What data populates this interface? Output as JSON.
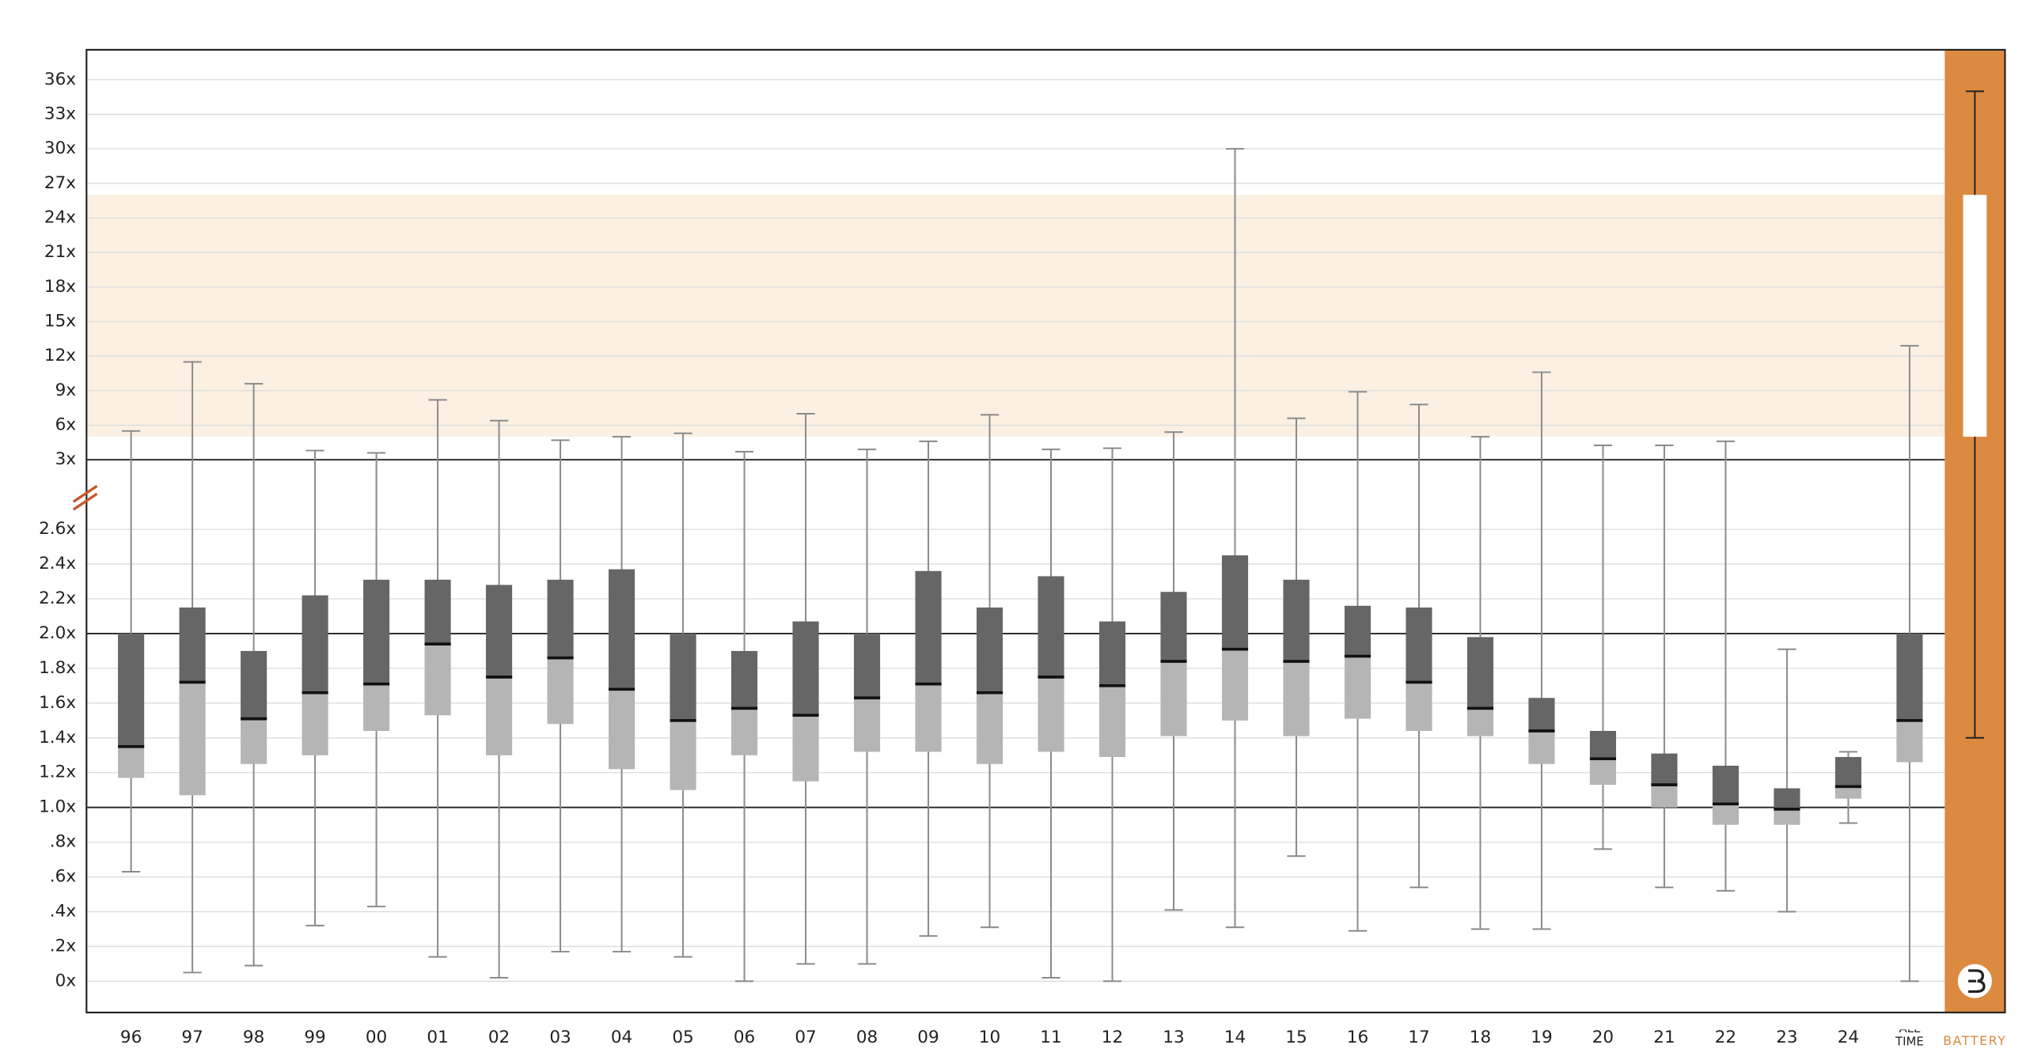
{
  "chart_data": {
    "type": "box",
    "categories": [
      "96",
      "97",
      "98",
      "99",
      "00",
      "01",
      "02",
      "03",
      "04",
      "05",
      "06",
      "07",
      "08",
      "09",
      "10",
      "11",
      "12",
      "13",
      "14",
      "15",
      "16",
      "17",
      "18",
      "19",
      "20",
      "21",
      "22",
      "23",
      "24",
      "ALL TIME"
    ],
    "boxes": [
      {
        "low": 0.63,
        "q1": 1.17,
        "median": 1.35,
        "q3": 2.0,
        "high": 5.5
      },
      {
        "low": 0.05,
        "q1": 1.07,
        "median": 1.72,
        "q3": 2.15,
        "high": 11.5
      },
      {
        "low": 0.09,
        "q1": 1.25,
        "median": 1.51,
        "q3": 1.9,
        "high": 9.6
      },
      {
        "low": 0.32,
        "q1": 1.3,
        "median": 1.66,
        "q3": 2.22,
        "high": 3.8
      },
      {
        "low": 0.43,
        "q1": 1.44,
        "median": 1.71,
        "q3": 2.31,
        "high": 3.6
      },
      {
        "low": 0.14,
        "q1": 1.53,
        "median": 1.94,
        "q3": 2.31,
        "high": 8.2
      },
      {
        "low": 0.02,
        "q1": 1.3,
        "median": 1.75,
        "q3": 2.28,
        "high": 6.4
      },
      {
        "low": 0.17,
        "q1": 1.48,
        "median": 1.86,
        "q3": 2.31,
        "high": 4.7
      },
      {
        "low": 0.17,
        "q1": 1.22,
        "median": 1.68,
        "q3": 2.37,
        "high": 5.0
      },
      {
        "low": 0.14,
        "q1": 1.1,
        "median": 1.5,
        "q3": 2.0,
        "high": 5.3
      },
      {
        "low": 0.0,
        "q1": 1.3,
        "median": 1.57,
        "q3": 1.9,
        "high": 3.7
      },
      {
        "low": 0.1,
        "q1": 1.15,
        "median": 1.53,
        "q3": 2.07,
        "high": 7.0
      },
      {
        "low": 0.1,
        "q1": 1.32,
        "median": 1.63,
        "q3": 2.0,
        "high": 3.9
      },
      {
        "low": 0.26,
        "q1": 1.32,
        "median": 1.71,
        "q3": 2.36,
        "high": 4.6
      },
      {
        "low": 0.31,
        "q1": 1.25,
        "median": 1.66,
        "q3": 2.15,
        "high": 6.9
      },
      {
        "low": 0.02,
        "q1": 1.32,
        "median": 1.75,
        "q3": 2.33,
        "high": 3.9
      },
      {
        "low": 0.0,
        "q1": 1.29,
        "median": 1.7,
        "q3": 2.07,
        "high": 4.0
      },
      {
        "low": 0.41,
        "q1": 1.41,
        "median": 1.84,
        "q3": 2.24,
        "high": 5.4
      },
      {
        "low": 0.31,
        "q1": 1.5,
        "median": 1.91,
        "q3": 2.45,
        "high": 30
      },
      {
        "low": 0.72,
        "q1": 1.41,
        "median": 1.84,
        "q3": 2.31,
        "high": 6.6
      },
      {
        "low": 0.29,
        "q1": 1.51,
        "median": 1.87,
        "q3": 2.16,
        "high": 8.9
      },
      {
        "low": 0.54,
        "q1": 1.44,
        "median": 1.72,
        "q3": 2.15,
        "high": 7.8
      },
      {
        "low": 0.3,
        "q1": 1.41,
        "median": 1.57,
        "q3": 1.98,
        "high": 5.0
      },
      {
        "low": 0.3,
        "q1": 1.25,
        "median": 1.44,
        "q3": 1.63,
        "high": 10.6
      },
      {
        "low": 0.76,
        "q1": 1.13,
        "median": 1.28,
        "q3": 1.44,
        "high": 4.25
      },
      {
        "low": 0.54,
        "q1": 1.0,
        "median": 1.13,
        "q3": 1.31,
        "high": 4.25
      },
      {
        "low": 0.52,
        "q1": 0.9,
        "median": 1.02,
        "q3": 1.24,
        "high": 4.6
      },
      {
        "low": 0.4,
        "q1": 0.9,
        "median": 0.99,
        "q3": 1.11,
        "high": 1.91
      },
      {
        "low": 0.91,
        "q1": 1.05,
        "median": 1.12,
        "q3": 1.29,
        "high": 1.32
      },
      {
        "low": 0.0,
        "q1": 1.26,
        "median": 1.5,
        "q3": 2.0,
        "high": 12.9
      }
    ],
    "upper_box_color": "#666666",
    "lower_box_color": "#b5b5b5",
    "whisker_color": "#8a8a8a",
    "battery": {
      "label": "BATTERY",
      "color": "#dc8a40",
      "band_color": "#fbf0e2",
      "low": 1.4,
      "q1": 5,
      "q3": 26,
      "high": 35
    },
    "reference_lines": [
      1,
      2,
      3
    ],
    "ylim": [
      -0.18,
      38.6
    ],
    "scale_break": 3,
    "yticks": [
      {
        "value": 0,
        "label": "0x"
      },
      {
        "value": 0.2,
        "label": ".2x"
      },
      {
        "value": 0.4,
        "label": ".4x"
      },
      {
        "value": 0.6,
        "label": ".6x"
      },
      {
        "value": 0.8,
        "label": ".8x"
      },
      {
        "value": 1,
        "label": "1.0x"
      },
      {
        "value": 1.2,
        "label": "1.2x"
      },
      {
        "value": 1.4,
        "label": "1.4x"
      },
      {
        "value": 1.6,
        "label": "1.6x"
      },
      {
        "value": 1.8,
        "label": "1.8x"
      },
      {
        "value": 2,
        "label": "2.0x"
      },
      {
        "value": 2.2,
        "label": "2.2x"
      },
      {
        "value": 2.4,
        "label": "2.4x"
      },
      {
        "value": 2.6,
        "label": "2.6x"
      },
      {
        "value": 3,
        "label": "3x"
      },
      {
        "value": 6,
        "label": "6x"
      },
      {
        "value": 9,
        "label": "9x"
      },
      {
        "value": 12,
        "label": "12x"
      },
      {
        "value": 15,
        "label": "15x"
      },
      {
        "value": 18,
        "label": "18x"
      },
      {
        "value": 21,
        "label": "21x"
      },
      {
        "value": 24,
        "label": "24x"
      },
      {
        "value": 27,
        "label": "27x"
      },
      {
        "value": 30,
        "label": "30x"
      },
      {
        "value": 33,
        "label": "33x"
      },
      {
        "value": 36,
        "label": "36x"
      }
    ],
    "grid": true
  }
}
